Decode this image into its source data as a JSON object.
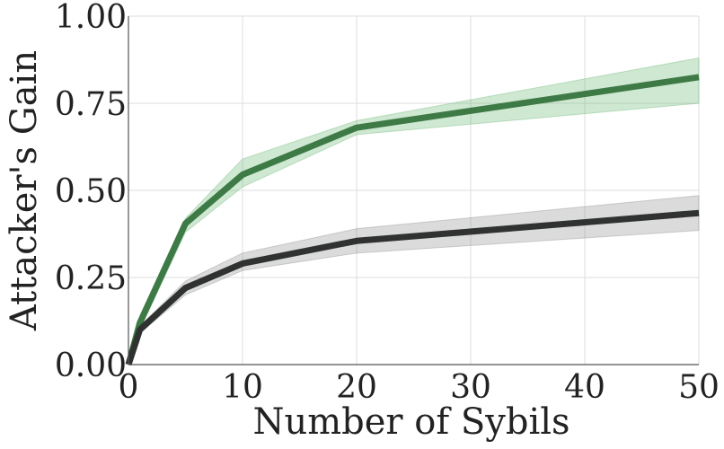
{
  "chart_data": {
    "type": "line",
    "title": "",
    "xlabel": "Number of Sybils",
    "ylabel": "Attacker's Gain",
    "xlim": [
      0,
      50
    ],
    "ylim": [
      0,
      1.0
    ],
    "xticks": [
      0,
      10,
      20,
      30,
      40,
      50
    ],
    "xtick_labels": [
      "0",
      "10",
      "20",
      "30",
      "40",
      "50"
    ],
    "yticks": [
      0,
      0.25,
      0.5,
      0.75,
      1.0
    ],
    "ytick_labels": [
      "0.00",
      "0.25",
      "0.50",
      "0.75",
      "1.00"
    ],
    "grid": true,
    "legend": "none",
    "x": [
      0,
      1,
      5,
      10,
      20,
      50
    ],
    "series": [
      {
        "color": "#3d7a45",
        "band_color": "#5fb36a",
        "values": [
          0.0,
          0.12,
          0.405,
          0.545,
          0.68,
          0.825
        ],
        "lower": [
          0.0,
          0.1,
          0.38,
          0.51,
          0.66,
          0.75
        ],
        "upper": [
          0.0,
          0.14,
          0.42,
          0.59,
          0.7,
          0.88
        ]
      },
      {
        "color": "#2f3230",
        "band_color": "#888888",
        "values": [
          0.0,
          0.1,
          0.22,
          0.29,
          0.355,
          0.435
        ],
        "lower": [
          0.0,
          0.09,
          0.2,
          0.27,
          0.32,
          0.385
        ],
        "upper": [
          0.0,
          0.11,
          0.24,
          0.32,
          0.39,
          0.485
        ]
      }
    ]
  }
}
